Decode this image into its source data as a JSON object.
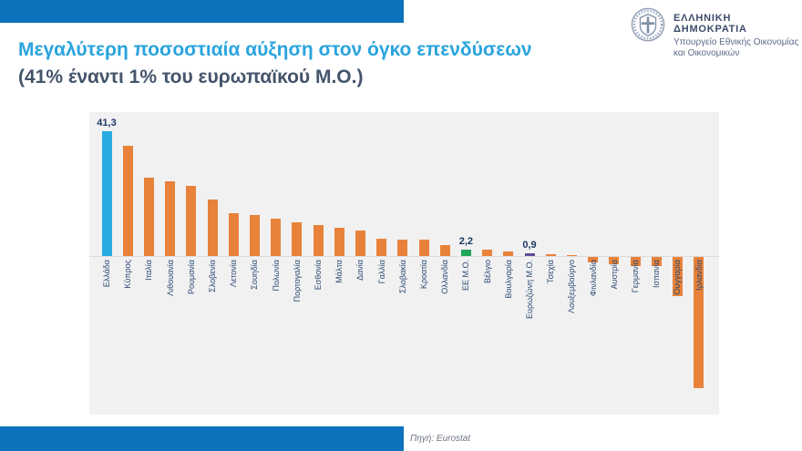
{
  "header": {
    "title_line1": "Μεγαλύτερη ποσοστιαία αύξηση στον όγκο επενδύσεων",
    "title_line2": "(41% έναντι 1% του ευρωπαϊκού Μ.Ο.)",
    "org_name": "ΕΛΛΗΝΙΚΗ ΔΗΜΟΚΡΑΤΙΑ",
    "org_dept_line1": "Υπουργείο Εθνικής Οικονομίας",
    "org_dept_line2": "και Οικονομικών",
    "emblem_icon": "greek-coat-of-arms"
  },
  "footer": {
    "source_label": "Πηγή: Eurostat"
  },
  "colors": {
    "accent_band_blue": "#0c72bb",
    "title_light_blue": "#29a4de",
    "title_dark_slate": "#44546a",
    "bar_orange": "#e8823a",
    "bar_cyan_highlight": "#29abe2",
    "bar_green_eu": "#1fa65a",
    "bar_purple_eurozone": "#5f4b9b",
    "axis_label_navy": "#2d4b73",
    "plot_background": "#f1f1f2"
  },
  "chart_data": {
    "type": "bar",
    "title": "Μεγαλύτερη ποσοστιαία αύξηση στον όγκο επενδύσεων (41% έναντι 1% του ευρωπαϊκού Μ.Ο.)",
    "xlabel": "",
    "ylabel": "",
    "grid": false,
    "legend": false,
    "ylim": [
      -47,
      47
    ],
    "categories": [
      "Ελλάδα",
      "Κύπρος",
      "Ιταλία",
      "Λιθουανία",
      "Ρουμανία",
      "Σλοβενία",
      "Λετονία",
      "Σουηδία",
      "Πολωνία",
      "Πορτογαλία",
      "Εσθονία",
      "Μάλτα",
      "Δανία",
      "Γαλλία",
      "Σλοβακία",
      "Κροατία",
      "Ολλανδία",
      "ΕΕ Μ.Ο.",
      "Βέλγιο",
      "Βουλγαρία",
      "Ευρωζώνη Μ.Ο.",
      "Τσεχία",
      "Λουξεμβούργο",
      "Φινλανδία",
      "Αυστρία",
      "Γερμανία",
      "Ισπανία",
      "Ουγγαρία",
      "Ιρλανδία"
    ],
    "values": [
      41.3,
      36.5,
      26.0,
      24.7,
      23.2,
      18.6,
      14.1,
      13.6,
      12.4,
      11.2,
      10.3,
      9.3,
      8.5,
      5.8,
      5.4,
      5.3,
      3.6,
      2.2,
      2.0,
      1.5,
      0.9,
      0.7,
      0.2,
      -1.8,
      -2.5,
      -3.0,
      -3.0,
      -13.0,
      -43.5
    ],
    "data_labels": {
      "Ελλάδα": "41,3",
      "ΕΕ Μ.Ο.": "2,2",
      "Ευρωζώνη Μ.Ο.": "0,9"
    },
    "default_color": "#e8823a",
    "highlight_colors": {
      "Ελλάδα": "#29abe2",
      "ΕΕ Μ.Ο.": "#1fa65a",
      "Ευρωζώνη Μ.Ο.": "#5f4b9b"
    }
  }
}
